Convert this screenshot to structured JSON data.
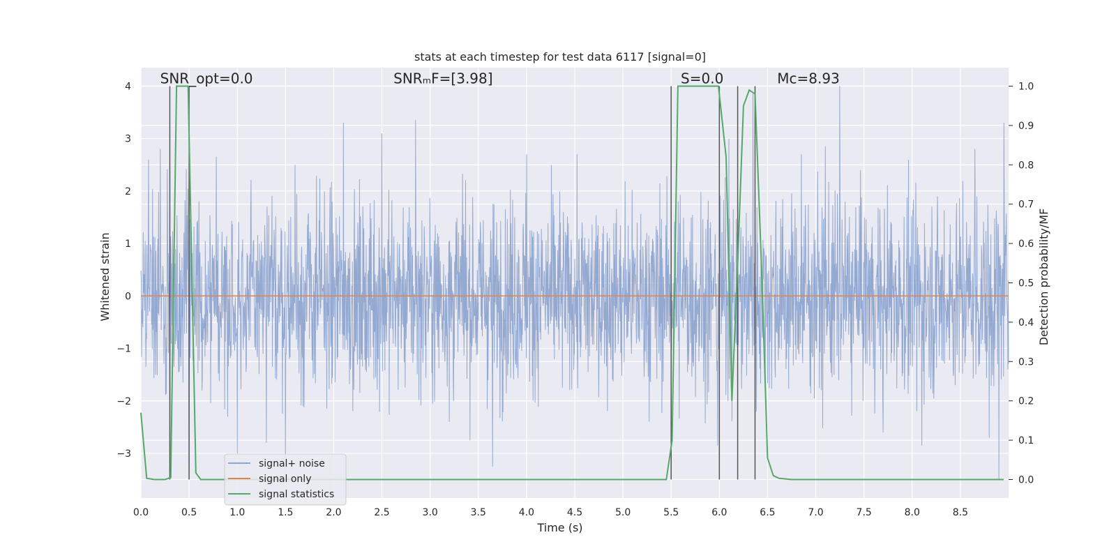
{
  "chart_data": {
    "type": "line",
    "title": "stats at each timestep for test data 6117 [signal=0]",
    "xlabel": "Time (s)",
    "ylabel_left": "Whitened strain",
    "ylabel_right": "Detection probability/MF",
    "xlim": [
      0.0,
      9.0
    ],
    "ylim_left": [
      -3.85,
      4.35
    ],
    "ylim_right": [
      -0.047,
      1.047
    ],
    "x_ticks": [
      "0.0",
      "0.5",
      "1.0",
      "1.5",
      "2.0",
      "2.5",
      "3.0",
      "3.5",
      "4.0",
      "4.5",
      "5.0",
      "5.5",
      "6.0",
      "6.5",
      "7.0",
      "7.5",
      "8.0",
      "8.5"
    ],
    "x_tick_values": [
      0.0,
      0.5,
      1.0,
      1.5,
      2.0,
      2.5,
      3.0,
      3.5,
      4.0,
      4.5,
      5.0,
      5.5,
      6.0,
      6.5,
      7.0,
      7.5,
      8.0,
      8.5
    ],
    "y_ticks_left": [
      "4",
      "3",
      "2",
      "1",
      "0",
      "−1",
      "−2",
      "−3"
    ],
    "y_tick_values_left": [
      4,
      3,
      2,
      1,
      0,
      -1,
      -2,
      -3
    ],
    "y_ticks_right": [
      "1.0",
      "0.9",
      "0.8",
      "0.7",
      "0.6",
      "0.5",
      "0.4",
      "0.3",
      "0.2",
      "0.1",
      "0.0"
    ],
    "y_tick_values_right": [
      1.0,
      0.9,
      0.8,
      0.7,
      0.6,
      0.5,
      0.4,
      0.3,
      0.2,
      0.1,
      0.0
    ],
    "grid": true,
    "legend_position": "lower-left",
    "annotations": [
      {
        "id": "snr-opt",
        "text": "SNR_opt=0.0",
        "x": 0.2,
        "y": 4.05
      },
      {
        "id": "snr-mf",
        "text": "SNRₘF=[3.98]",
        "x": 2.62,
        "y": 4.05
      },
      {
        "id": "s-value",
        "text": "S=0.0",
        "x": 5.6,
        "y": 4.05
      },
      {
        "id": "mc-value",
        "text": "Mᴄ=8.93",
        "x": 6.6,
        "y": 4.05
      }
    ],
    "vertical_markers": [
      0.3,
      0.5,
      5.5,
      6.0,
      6.19,
      6.37
    ],
    "series": [
      {
        "name": "signal+ noise",
        "color": "#8fa5cf",
        "axis": "left",
        "x_range": [
          0.0,
          9.0
        ],
        "approx_std": 0.9,
        "peaks": [
          [
            0.08,
            2.6
          ],
          [
            0.2,
            2.8
          ],
          [
            0.3,
            -3.2
          ],
          [
            0.5,
            -3.5
          ],
          [
            0.9,
            -2.3
          ],
          [
            1.0,
            -3.0
          ],
          [
            1.3,
            -2.8
          ],
          [
            1.5,
            -3.4
          ],
          [
            1.6,
            2.5
          ],
          [
            2.1,
            3.3
          ],
          [
            2.5,
            3.1
          ],
          [
            2.85,
            3.35
          ],
          [
            3.2,
            -2.4
          ],
          [
            3.65,
            -3.25
          ],
          [
            4.0,
            2.7
          ],
          [
            5.98,
            -2.85
          ],
          [
            6.1,
            3.0
          ],
          [
            6.35,
            3.85
          ],
          [
            6.85,
            2.7
          ],
          [
            7.1,
            2.85
          ],
          [
            7.25,
            4.0
          ],
          [
            7.7,
            -2.6
          ],
          [
            8.1,
            -2.85
          ],
          [
            8.65,
            2.8
          ],
          [
            8.9,
            3.75
          ],
          [
            8.95,
            3.3
          ],
          [
            8.9,
            -3.5
          ],
          [
            8.8,
            -2.7
          ]
        ]
      },
      {
        "name": "signal only",
        "color": "#dd8452",
        "axis": "left",
        "x": [
          0.0,
          9.0
        ],
        "y": [
          0.0,
          0.0
        ]
      },
      {
        "name": "signal statistics",
        "color": "#55a868",
        "axis": "right",
        "x": [
          0.0,
          0.06,
          0.14,
          0.25,
          0.31,
          0.37,
          0.49,
          0.57,
          0.62,
          1.0,
          2.0,
          3.0,
          4.0,
          5.0,
          5.45,
          5.51,
          5.57,
          5.63,
          5.99,
          6.07,
          6.13,
          6.19,
          6.25,
          6.31,
          6.37,
          6.44,
          6.5,
          6.56,
          6.62,
          6.75,
          7.0,
          8.0,
          8.95
        ],
        "y": [
          0.17,
          0.003,
          0.0,
          0.0,
          0.005,
          1.0,
          1.0,
          0.017,
          0.0,
          0.0,
          0.0,
          0.0,
          0.0,
          0.0,
          0.0,
          0.1,
          1.0,
          1.0,
          1.0,
          0.82,
          0.2,
          0.55,
          0.95,
          0.99,
          0.98,
          0.52,
          0.055,
          0.01,
          0.003,
          0.0,
          0.0,
          0.0,
          0.0
        ]
      }
    ]
  }
}
